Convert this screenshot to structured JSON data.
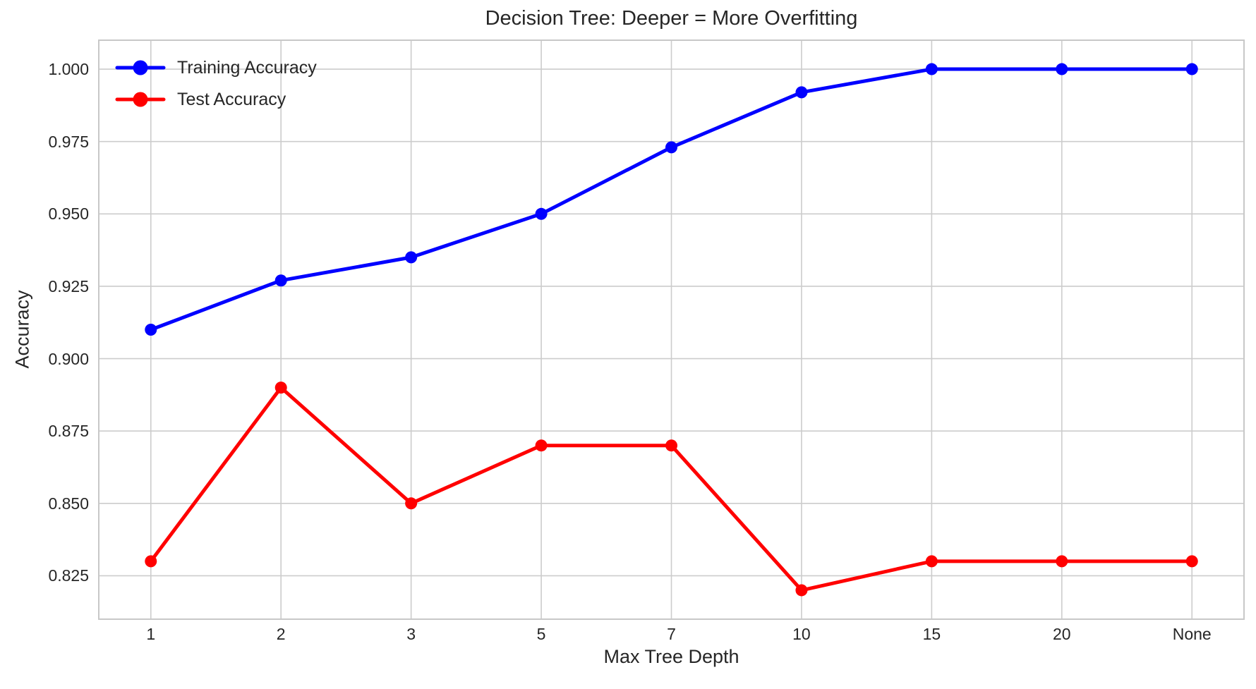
{
  "chart_data": {
    "type": "line",
    "title": "Decision Tree: Deeper = More Overfitting",
    "xlabel": "Max Tree Depth",
    "ylabel": "Accuracy",
    "categories": [
      "1",
      "2",
      "3",
      "5",
      "7",
      "10",
      "15",
      "20",
      "None"
    ],
    "series": [
      {
        "name": "Training Accuracy",
        "color": "#0000FF",
        "values": [
          0.91,
          0.927,
          0.935,
          0.95,
          0.973,
          0.992,
          1.0,
          1.0,
          1.0
        ]
      },
      {
        "name": "Test Accuracy",
        "color": "#FF0000",
        "values": [
          0.83,
          0.89,
          0.85,
          0.87,
          0.87,
          0.82,
          0.83,
          0.83,
          0.83
        ]
      }
    ],
    "ytick_labels": [
      "0.825",
      "0.850",
      "0.875",
      "0.900",
      "0.925",
      "0.950",
      "0.975",
      "1.000"
    ],
    "yticks": [
      0.825,
      0.85,
      0.875,
      0.9,
      0.925,
      0.95,
      0.975,
      1.0
    ],
    "ylim": [
      0.81,
      1.01
    ],
    "x_margin_categories": 0.4,
    "grid": true,
    "legend_position": "upper left",
    "colors": {
      "grid": "#cccccc",
      "spine": "#c8c8c8",
      "text": "#262626",
      "background": "#ffffff"
    }
  }
}
